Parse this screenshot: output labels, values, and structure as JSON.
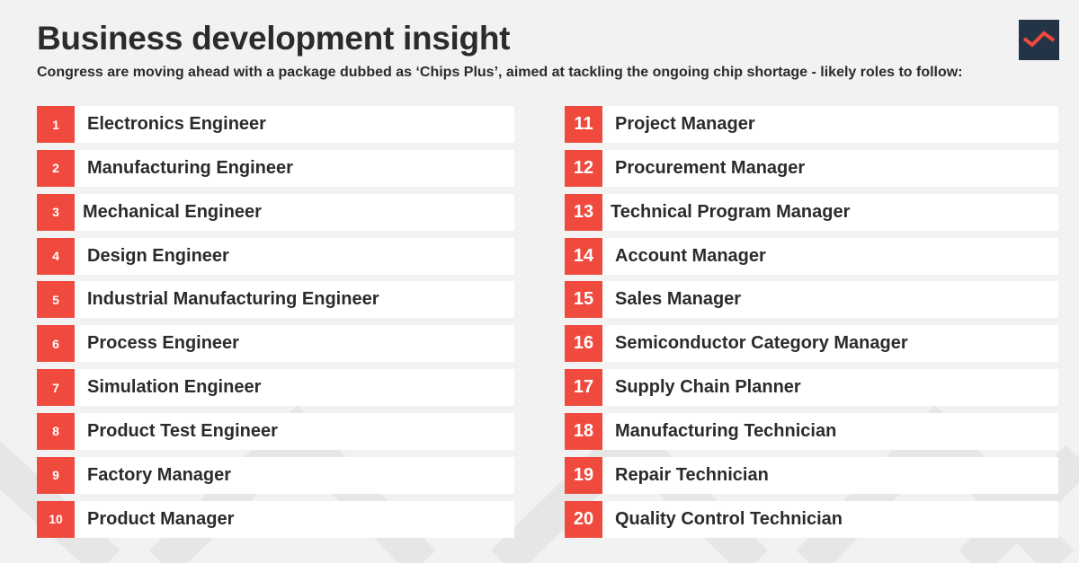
{
  "header": {
    "title": "Business development insight",
    "subtitle": "Congress are moving ahead with a package dubbed as ‘Chips Plus’, aimed at tackling the ongoing chip shortage - likely roles to follow:"
  },
  "brand": {
    "logo_icon": "zigzag-logo-icon",
    "logo_bg": "#243447",
    "logo_mark": "#f0493e",
    "accent": "#f0493e",
    "background": "#f2f2f2"
  },
  "roles_left": [
    {
      "num": "1",
      "label": "Electronics Engineer"
    },
    {
      "num": "2",
      "label": "Manufacturing Engineer"
    },
    {
      "num": "3",
      "label": "Mechanical Engineer"
    },
    {
      "num": "4",
      "label": "Design Engineer"
    },
    {
      "num": "5",
      "label": "Industrial Manufacturing Engineer"
    },
    {
      "num": "6",
      "label": "Process Engineer"
    },
    {
      "num": "7",
      "label": "Simulation Engineer"
    },
    {
      "num": "8",
      "label": "Product Test Engineer"
    },
    {
      "num": "9",
      "label": "Factory Manager"
    },
    {
      "num": "10",
      "label": "Product Manager"
    }
  ],
  "roles_right": [
    {
      "num": "11",
      "label": "Project Manager"
    },
    {
      "num": "12",
      "label": "Procurement Manager"
    },
    {
      "num": "13",
      "label": "Technical Program Manager"
    },
    {
      "num": "14",
      "label": "Account Manager"
    },
    {
      "num": "15",
      "label": "Sales Manager"
    },
    {
      "num": "16",
      "label": "Semiconductor Category Manager"
    },
    {
      "num": "17",
      "label": "Supply Chain Planner"
    },
    {
      "num": "18",
      "label": "Manufacturing Technician"
    },
    {
      "num": "19",
      "label": "Repair Technician"
    },
    {
      "num": "20",
      "label": "Quality Control Technician"
    }
  ]
}
